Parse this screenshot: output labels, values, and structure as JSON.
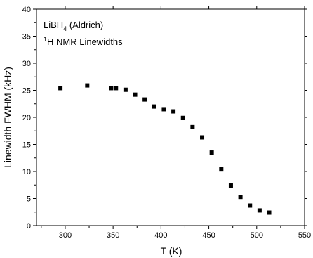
{
  "chart_data": {
    "type": "scatter",
    "annotation": {
      "line1_prefix": "LiBH",
      "line1_subscript": "4",
      "line1_suffix": " (Aldrich)",
      "line2_superscript": "1",
      "line2_text": "H NMR Linewidths"
    },
    "xlabel": "T (K)",
    "ylabel": "Linewidth FWHM (kHz)",
    "xlim": [
      270,
      550
    ],
    "ylim": [
      0,
      40
    ],
    "xticks": [
      300,
      350,
      400,
      450,
      500,
      550
    ],
    "yticks": [
      0,
      5,
      10,
      15,
      20,
      25,
      30,
      35,
      40
    ],
    "grid": false,
    "legend": "none",
    "marker": "square",
    "marker_color": "#000000",
    "points": [
      {
        "x": 295,
        "y": 25.4
      },
      {
        "x": 323,
        "y": 25.9
      },
      {
        "x": 348,
        "y": 25.4
      },
      {
        "x": 353,
        "y": 25.4
      },
      {
        "x": 363,
        "y": 25.1
      },
      {
        "x": 373,
        "y": 24.2
      },
      {
        "x": 383,
        "y": 23.3
      },
      {
        "x": 393,
        "y": 22.0
      },
      {
        "x": 403,
        "y": 21.5
      },
      {
        "x": 413,
        "y": 21.1
      },
      {
        "x": 423,
        "y": 19.9
      },
      {
        "x": 433,
        "y": 18.2
      },
      {
        "x": 443,
        "y": 16.3
      },
      {
        "x": 453,
        "y": 13.5
      },
      {
        "x": 463,
        "y": 10.5
      },
      {
        "x": 473,
        "y": 7.4
      },
      {
        "x": 483,
        "y": 5.3
      },
      {
        "x": 493,
        "y": 3.7
      },
      {
        "x": 503,
        "y": 2.8
      },
      {
        "x": 513,
        "y": 2.4
      }
    ]
  }
}
